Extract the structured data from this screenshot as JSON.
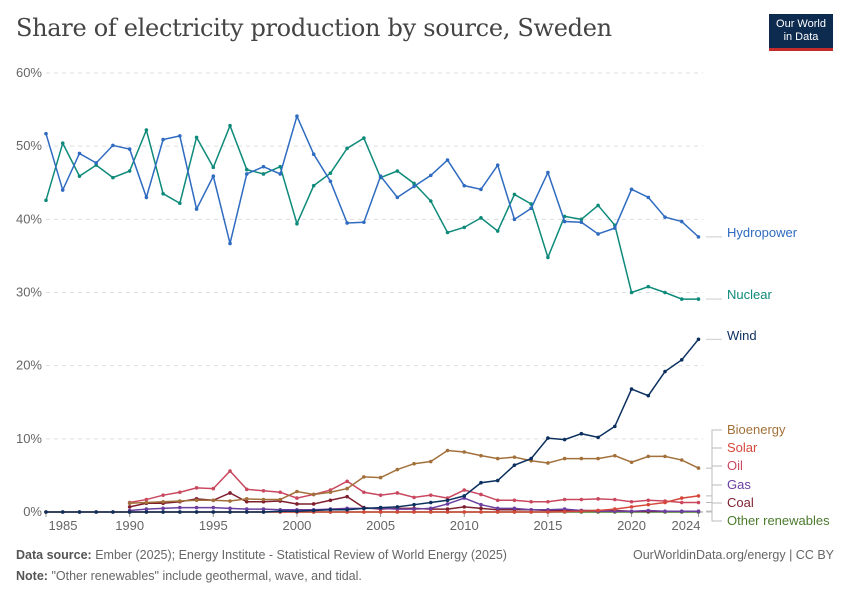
{
  "title": "Share of electricity production by source, Sweden",
  "logo": {
    "line1": "Our World",
    "line2": "in Data"
  },
  "footer": {
    "source_label": "Data source:",
    "source": "Ember (2025); Energy Institute - Statistical Review of World Energy (2025)",
    "url": "OurWorldinData.org/energy | CC BY",
    "note_label": "Note:",
    "note": "\"Other renewables\" include geothermal, wave, and tidal."
  },
  "chart_data": {
    "type": "line",
    "title": "Share of electricity production by source, Sweden",
    "xlabel": "",
    "ylabel": "",
    "xlim": [
      1985,
      2024
    ],
    "ylim": [
      0,
      60
    ],
    "grid": "horizontal dashed",
    "legend": "right, end of lines",
    "x_ticks": [
      "1985",
      "1990",
      "1995",
      "2000",
      "2005",
      "2010",
      "2015",
      "2020",
      "2024"
    ],
    "y_ticks": [
      "0%",
      "10%",
      "20%",
      "30%",
      "40%",
      "50%",
      "60%"
    ],
    "x": [
      1985,
      1986,
      1987,
      1988,
      1989,
      1990,
      1991,
      1992,
      1993,
      1994,
      1995,
      1996,
      1997,
      1998,
      1999,
      2000,
      2001,
      2002,
      2003,
      2004,
      2005,
      2006,
      2007,
      2008,
      2009,
      2010,
      2011,
      2012,
      2013,
      2014,
      2015,
      2016,
      2017,
      2018,
      2019,
      2020,
      2021,
      2022,
      2023,
      2024
    ],
    "series": [
      {
        "name": "Hydropower",
        "color": "#2f6bc0",
        "values": [
          51.7,
          44.0,
          49.0,
          47.7,
          50.1,
          49.6,
          43.0,
          50.9,
          51.4,
          41.4,
          45.9,
          36.7,
          46.2,
          47.2,
          46.2,
          54.1,
          48.9,
          45.2,
          39.5,
          39.6,
          45.9,
          43.0,
          44.5,
          46.0,
          48.1,
          44.6,
          44.1,
          47.4,
          40.0,
          41.5,
          46.4,
          39.7,
          39.6,
          38.0,
          38.8,
          44.1,
          43.0,
          40.3,
          39.7,
          37.6
        ]
      },
      {
        "name": "Nuclear",
        "color": "#0e8a7a",
        "values": [
          42.6,
          50.4,
          45.9,
          47.4,
          45.7,
          46.6,
          52.2,
          43.5,
          42.2,
          51.2,
          47.1,
          52.8,
          46.8,
          46.2,
          47.2,
          39.4,
          44.6,
          46.3,
          49.7,
          51.1,
          45.7,
          46.6,
          44.9,
          42.5,
          38.2,
          38.9,
          40.2,
          38.4,
          43.4,
          42.1,
          34.8,
          40.4,
          40.0,
          41.9,
          39.2,
          30.0,
          30.8,
          30.0,
          29.1,
          29.1
        ]
      },
      {
        "name": "Wind",
        "color": "#0b2f5e",
        "values": [
          0,
          0,
          0,
          0,
          0,
          0,
          0,
          0,
          0,
          0,
          0,
          0,
          0,
          0,
          0.1,
          0.1,
          0.2,
          0.3,
          0.3,
          0.5,
          0.6,
          0.7,
          1.0,
          1.3,
          1.6,
          2.2,
          4.0,
          4.3,
          6.4,
          7.3,
          10.1,
          9.9,
          10.7,
          10.2,
          11.7,
          16.8,
          15.9,
          19.2,
          20.8,
          23.6
        ]
      },
      {
        "name": "Bioenergy",
        "color": "#a2703a",
        "values": [
          null,
          null,
          null,
          null,
          null,
          1.2,
          1.3,
          1.4,
          1.5,
          1.6,
          1.6,
          1.5,
          1.8,
          1.7,
          1.7,
          2.8,
          2.4,
          2.7,
          3.2,
          4.8,
          4.7,
          5.8,
          6.6,
          6.9,
          8.4,
          8.2,
          7.7,
          7.3,
          7.5,
          7.0,
          6.7,
          7.3,
          7.3,
          7.3,
          7.7,
          6.8,
          7.6,
          7.6,
          7.1,
          6.0
        ]
      },
      {
        "name": "Solar",
        "color": "#d6473b",
        "values": [
          0,
          0,
          0,
          0,
          0,
          0,
          0,
          0,
          0,
          0,
          0,
          0,
          0,
          0,
          0,
          0,
          0,
          0,
          0,
          0,
          0,
          0,
          0,
          0,
          0,
          0,
          0,
          0,
          0,
          0,
          0,
          0.05,
          0.1,
          0.2,
          0.4,
          0.7,
          1.0,
          1.3,
          1.9,
          2.2
        ]
      },
      {
        "name": "Oil",
        "color": "#c9485f",
        "values": [
          null,
          null,
          null,
          null,
          null,
          1.3,
          1.7,
          2.3,
          2.7,
          3.3,
          3.2,
          5.6,
          3.1,
          2.9,
          2.7,
          1.9,
          2.4,
          3.0,
          4.2,
          2.7,
          2.3,
          2.6,
          2.0,
          2.3,
          1.9,
          3.0,
          2.4,
          1.6,
          1.6,
          1.4,
          1.4,
          1.7,
          1.7,
          1.8,
          1.7,
          1.4,
          1.6,
          1.5,
          1.3,
          1.3
        ]
      },
      {
        "name": "Gas",
        "color": "#6b3fa0",
        "values": [
          null,
          null,
          null,
          null,
          null,
          0.2,
          0.4,
          0.5,
          0.6,
          0.6,
          0.6,
          0.5,
          0.4,
          0.4,
          0.3,
          0.3,
          0.3,
          0.4,
          0.5,
          0.5,
          0.5,
          0.4,
          0.4,
          0.5,
          1.1,
          1.9,
          1.0,
          0.5,
          0.5,
          0.3,
          0.3,
          0.4,
          0.2,
          0.1,
          0.1,
          0.1,
          0.2,
          0.1,
          0.1,
          0.1
        ]
      },
      {
        "name": "Coal",
        "color": "#7f1f2e",
        "values": [
          null,
          null,
          null,
          null,
          null,
          0.7,
          1.2,
          1.2,
          1.4,
          1.8,
          1.6,
          2.6,
          1.4,
          1.4,
          1.5,
          1.1,
          1.1,
          1.6,
          2.1,
          0.6,
          0.4,
          0.5,
          0.5,
          0.4,
          0.4,
          0.7,
          0.5,
          0.3,
          0.3,
          0.3,
          0.2,
          0.2,
          0.2,
          0.2,
          0.2,
          0.1,
          0.1,
          0.1,
          0.1,
          0.1
        ]
      },
      {
        "name": "Other renewables",
        "color": "#4c7b2e",
        "values": [
          0,
          0,
          0,
          0,
          0,
          0,
          0,
          0,
          0,
          0,
          0,
          0,
          0,
          0,
          0,
          0,
          0,
          0,
          0,
          0,
          0,
          0,
          0,
          0,
          0,
          0,
          0,
          0,
          0,
          0,
          0,
          0,
          0,
          0,
          0,
          0,
          0,
          0,
          0,
          0
        ]
      }
    ]
  }
}
